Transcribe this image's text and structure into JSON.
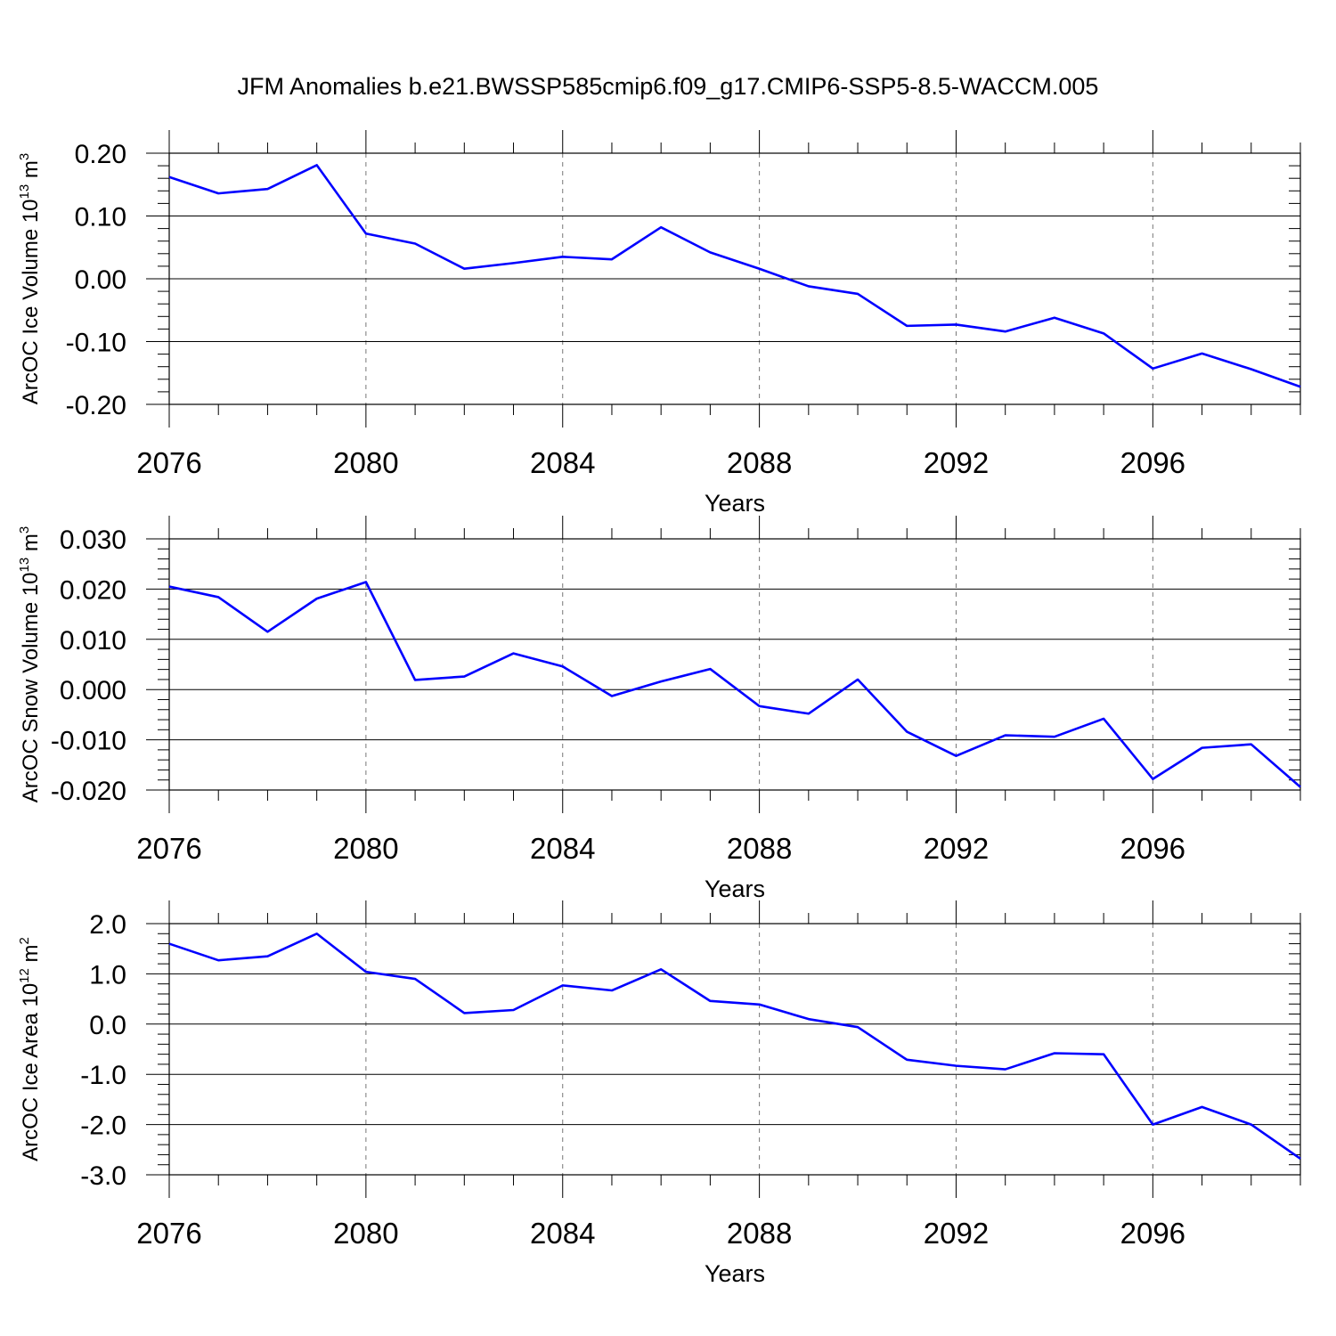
{
  "title": "JFM Anomalies b.e21.BWSSP585cmip6.f09_g17.CMIP6-SSP5-8.5-WACCM.005",
  "colors": {
    "series": "#0000ff",
    "grid": "#777777",
    "axis": "#000000"
  },
  "chart_data": [
    {
      "type": "line",
      "title": "JFM Anomalies b.e21.BWSSP585cmip6.f09_g17.CMIP6-SSP5-8.5-WACCM.005",
      "xlabel": "Years",
      "ylabel": {
        "prefix": "ArcOC Ice Volume 10",
        "exponent": "13",
        "unit": " m",
        "unit_exponent": "3"
      },
      "xlim": [
        2076,
        2099
      ],
      "ylim": [
        -0.2,
        0.2
      ],
      "xticks": [
        2076,
        2080,
        2084,
        2088,
        2092,
        2096
      ],
      "xtick_labels": [
        "2076",
        "2080",
        "2084",
        "2088",
        "2092",
        "2096"
      ],
      "yticks": [
        0.2,
        0.1,
        0.0,
        -0.1,
        -0.2
      ],
      "ytick_labels": [
        "0.20",
        "0.10",
        "0.00",
        "-0.10",
        "-0.20"
      ],
      "grid": "vertical dashed at major x ticks",
      "x": [
        2076,
        2077,
        2078,
        2079,
        2080,
        2081,
        2082,
        2083,
        2084,
        2085,
        2086,
        2087,
        2088,
        2089,
        2090,
        2091,
        2092,
        2093,
        2094,
        2095,
        2096,
        2097,
        2098,
        2099
      ],
      "values": [
        0.162,
        0.136,
        0.143,
        0.181,
        0.072,
        0.056,
        0.016,
        0.025,
        0.035,
        0.031,
        0.082,
        0.042,
        0.016,
        -0.012,
        -0.024,
        -0.075,
        -0.073,
        -0.084,
        -0.062,
        -0.087,
        -0.143,
        -0.119,
        -0.144,
        -0.172
      ]
    },
    {
      "type": "line",
      "xlabel": "Years",
      "ylabel": {
        "prefix": "ArcOC Snow Volume 10",
        "exponent": "13",
        "unit": " m",
        "unit_exponent": "3"
      },
      "xlim": [
        2076,
        2099
      ],
      "ylim": [
        -0.02,
        0.03
      ],
      "xticks": [
        2076,
        2080,
        2084,
        2088,
        2092,
        2096
      ],
      "xtick_labels": [
        "2076",
        "2080",
        "2084",
        "2088",
        "2092",
        "2096"
      ],
      "yticks": [
        0.03,
        0.02,
        0.01,
        0.0,
        -0.01,
        -0.02
      ],
      "ytick_labels": [
        "0.030",
        "0.020",
        "0.010",
        "0.000",
        "-0.010",
        "-0.020"
      ],
      "grid": "vertical dashed at major x ticks",
      "x": [
        2076,
        2077,
        2078,
        2079,
        2080,
        2081,
        2082,
        2083,
        2084,
        2085,
        2086,
        2087,
        2088,
        2089,
        2090,
        2091,
        2092,
        2093,
        2094,
        2095,
        2096,
        2097,
        2098,
        2099
      ],
      "values": [
        0.0205,
        0.0184,
        0.0115,
        0.0181,
        0.0214,
        0.0019,
        0.0026,
        0.0072,
        0.0046,
        -0.0013,
        0.0016,
        0.0041,
        -0.0033,
        -0.0048,
        0.002,
        -0.0084,
        -0.0132,
        -0.0091,
        -0.0094,
        -0.0058,
        -0.0178,
        -0.0116,
        -0.0109,
        -0.0194
      ]
    },
    {
      "type": "line",
      "xlabel": "Years",
      "ylabel": {
        "prefix": "ArcOC Ice Area 10",
        "exponent": "12",
        "unit": " m",
        "unit_exponent": "2"
      },
      "xlim": [
        2076,
        2099
      ],
      "ylim": [
        -3.0,
        2.0
      ],
      "xticks": [
        2076,
        2080,
        2084,
        2088,
        2092,
        2096
      ],
      "xtick_labels": [
        "2076",
        "2080",
        "2084",
        "2088",
        "2092",
        "2096"
      ],
      "yticks": [
        2.0,
        1.0,
        0.0,
        -1.0,
        -2.0,
        -3.0
      ],
      "ytick_labels": [
        "2.0",
        "1.0",
        "0.0",
        "-1.0",
        "-2.0",
        "-3.0"
      ],
      "grid": "vertical dashed at major x ticks",
      "x": [
        2076,
        2077,
        2078,
        2079,
        2080,
        2081,
        2082,
        2083,
        2084,
        2085,
        2086,
        2087,
        2088,
        2089,
        2090,
        2091,
        2092,
        2093,
        2094,
        2095,
        2096,
        2097,
        2098,
        2099
      ],
      "values": [
        1.6,
        1.27,
        1.35,
        1.8,
        1.04,
        0.9,
        0.22,
        0.28,
        0.77,
        0.67,
        1.09,
        0.46,
        0.39,
        0.1,
        -0.06,
        -0.71,
        -0.83,
        -0.9,
        -0.58,
        -0.6,
        -2.0,
        -1.65,
        -2.0,
        -2.68
      ]
    }
  ]
}
